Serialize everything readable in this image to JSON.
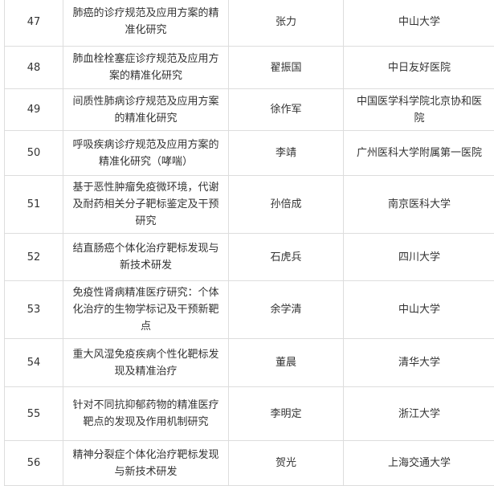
{
  "rows": [
    {
      "num": "47",
      "title": "肺癌的诊疗规范及应用方案的精准化研究",
      "name": "张力",
      "inst": "中山大学"
    },
    {
      "num": "48",
      "title": "肺血栓栓塞症诊疗规范及应用方案的精准化研究",
      "name": "翟振国",
      "inst": "中日友好医院"
    },
    {
      "num": "49",
      "title": "间质性肺病诊疗规范及应用方案的精准化研究",
      "name": "徐作军",
      "inst": "中国医学科学院北京协和医院"
    },
    {
      "num": "50",
      "title": "呼吸疾病诊疗规范及应用方案的精准化研究（哮喘）",
      "name": "李靖",
      "inst": "广州医科大学附属第一医院"
    },
    {
      "num": "51",
      "title": "基于恶性肿瘤免疫微环境，代谢及耐药相关分子靶标鉴定及干预研究",
      "name": "孙倍成",
      "inst": "南京医科大学"
    },
    {
      "num": "52",
      "title": "结直肠癌个体化治疗靶标发现与新技术研发",
      "name": "石虎兵",
      "inst": "四川大学"
    },
    {
      "num": "53",
      "title": "免疫性肾病精准医疗研究：个体化治疗的生物学标记及干预新靶点",
      "name": "余学清",
      "inst": "中山大学"
    },
    {
      "num": "54",
      "title": "重大风湿免疫疾病个性化靶标发现及精准治疗",
      "name": "董晨",
      "inst": "清华大学"
    },
    {
      "num": "55",
      "title": "针对不同抗抑郁药物的精准医疗靶点的发现及作用机制研究",
      "name": "李明定",
      "inst": "浙江大学"
    },
    {
      "num": "56",
      "title": "精神分裂症个体化治疗靶标发现与新技术研发",
      "name": "贺光",
      "inst": "上海交通大学"
    }
  ]
}
